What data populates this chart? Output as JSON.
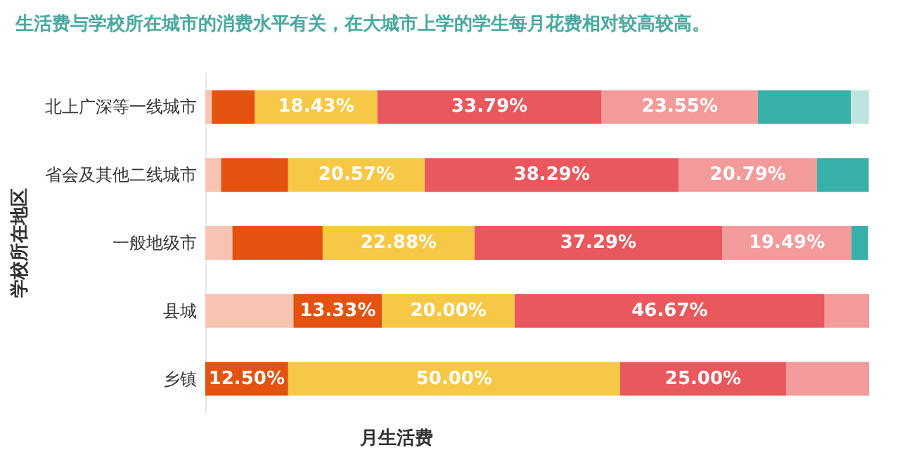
{
  "chart_data": {
    "type": "bar",
    "orientation": "horizontal",
    "stacked": true,
    "title": "生活费与学校所在城市的消费水平有关，在大城市上学的学生每月花费相对较高较高。",
    "xlabel": "月生活费",
    "ylabel": "学校所在地区",
    "categories": [
      "北上广深等一线城市",
      "省会及其他二线城市",
      "一般地级市",
      "县城",
      "乡镇"
    ],
    "series": [
      {
        "color": "#f7c4b2",
        "values": [
          1.0,
          2.4,
          4.1,
          13.3,
          0
        ],
        "value_labels": [
          null,
          null,
          null,
          null,
          null
        ]
      },
      {
        "color": "#e3530f",
        "values": [
          6.5,
          10.1,
          13.6,
          13.33,
          12.5
        ],
        "value_labels": [
          null,
          null,
          null,
          "13.33%",
          "12.50%"
        ]
      },
      {
        "color": "#f7c846",
        "values": [
          18.43,
          20.57,
          22.88,
          20.0,
          50.0
        ],
        "value_labels": [
          "18.43%",
          "20.57%",
          "22.88%",
          "20.00%",
          "50.00%"
        ]
      },
      {
        "color": "#e8585c",
        "values": [
          33.79,
          38.29,
          37.29,
          46.67,
          25.0
        ],
        "value_labels": [
          "33.79%",
          "38.29%",
          "37.29%",
          "46.67%",
          "25.00%"
        ]
      },
      {
        "color": "#f39a9a",
        "values": [
          23.55,
          20.79,
          19.49,
          6.7,
          12.5
        ],
        "value_labels": [
          "23.55%",
          "20.79%",
          "19.49%",
          null,
          null
        ]
      },
      {
        "color": "#36b0a8",
        "values": [
          14.0,
          7.8,
          2.5,
          0,
          0
        ],
        "value_labels": [
          null,
          null,
          null,
          null,
          null
        ]
      },
      {
        "color": "#bfe3de",
        "values": [
          2.7,
          0,
          0,
          0,
          0
        ],
        "value_labels": [
          null,
          null,
          null,
          null,
          null
        ]
      }
    ],
    "grid": false
  }
}
